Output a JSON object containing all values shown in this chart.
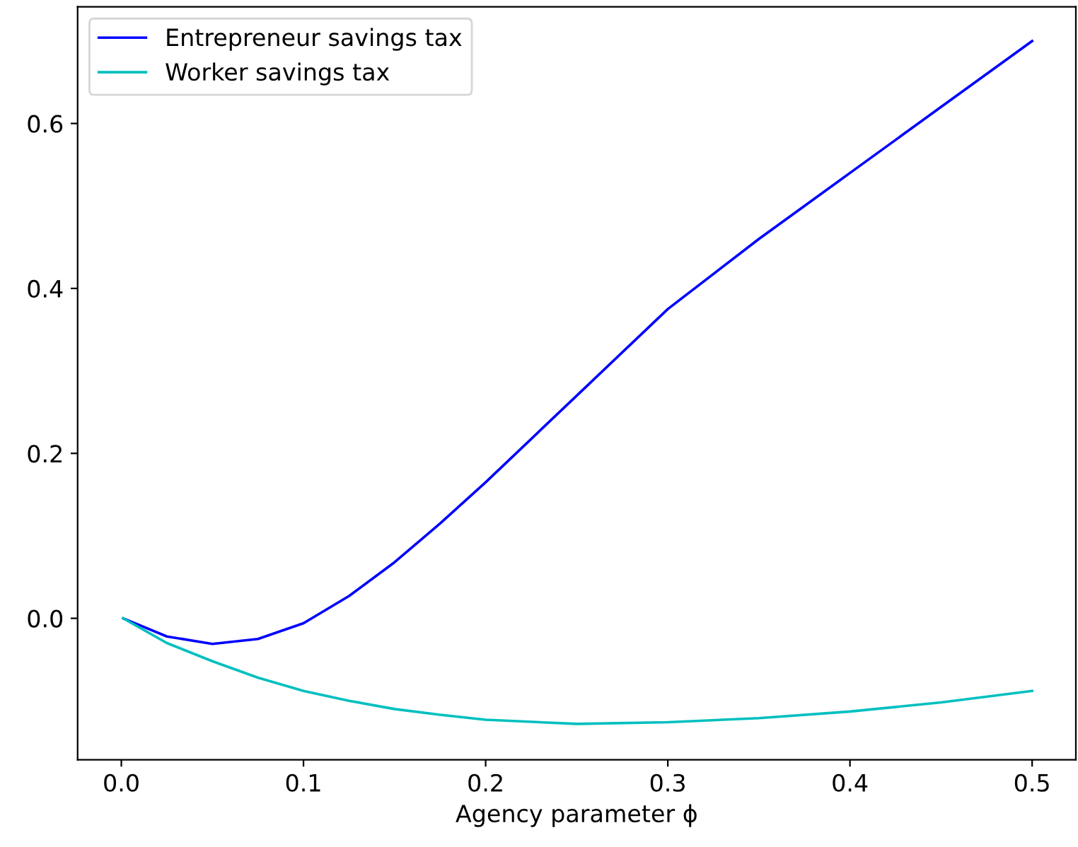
{
  "chart_data": {
    "type": "line",
    "xlabel": "Agency parameter ϕ",
    "x": [
      0.001,
      0.025,
      0.05,
      0.075,
      0.1,
      0.125,
      0.15,
      0.175,
      0.2,
      0.25,
      0.3,
      0.35,
      0.4,
      0.45,
      0.5
    ],
    "series": [
      {
        "name": "Entrepreneur savings tax",
        "color": "#0000ff",
        "values": [
          0,
          -0.022,
          -0.031,
          -0.025,
          -0.006,
          0.027,
          0.068,
          0.115,
          0.165,
          0.27,
          0.375,
          0.46,
          0.54,
          0.62,
          0.7
        ]
      },
      {
        "name": "Worker savings tax",
        "color": "#00bfbf",
        "values": [
          0,
          -0.03,
          -0.052,
          -0.072,
          -0.088,
          -0.1,
          -0.11,
          -0.117,
          -0.123,
          -0.128,
          -0.126,
          -0.121,
          -0.113,
          -0.102,
          -0.088
        ]
      }
    ],
    "xlim": [
      -0.024,
      0.524
    ],
    "ylim": [
      -0.1715,
      0.7415
    ],
    "xticks": [
      {
        "value": 0,
        "label": "0.0"
      },
      0.1,
      0.2,
      0.3,
      0.4,
      0.5
    ],
    "yticks": [
      {
        "value": 0,
        "label": "0.0"
      },
      0.2,
      0.4,
      0.6
    ],
    "grid": false,
    "legend": "top left",
    "marker": "none",
    "line_style": "solid"
  }
}
